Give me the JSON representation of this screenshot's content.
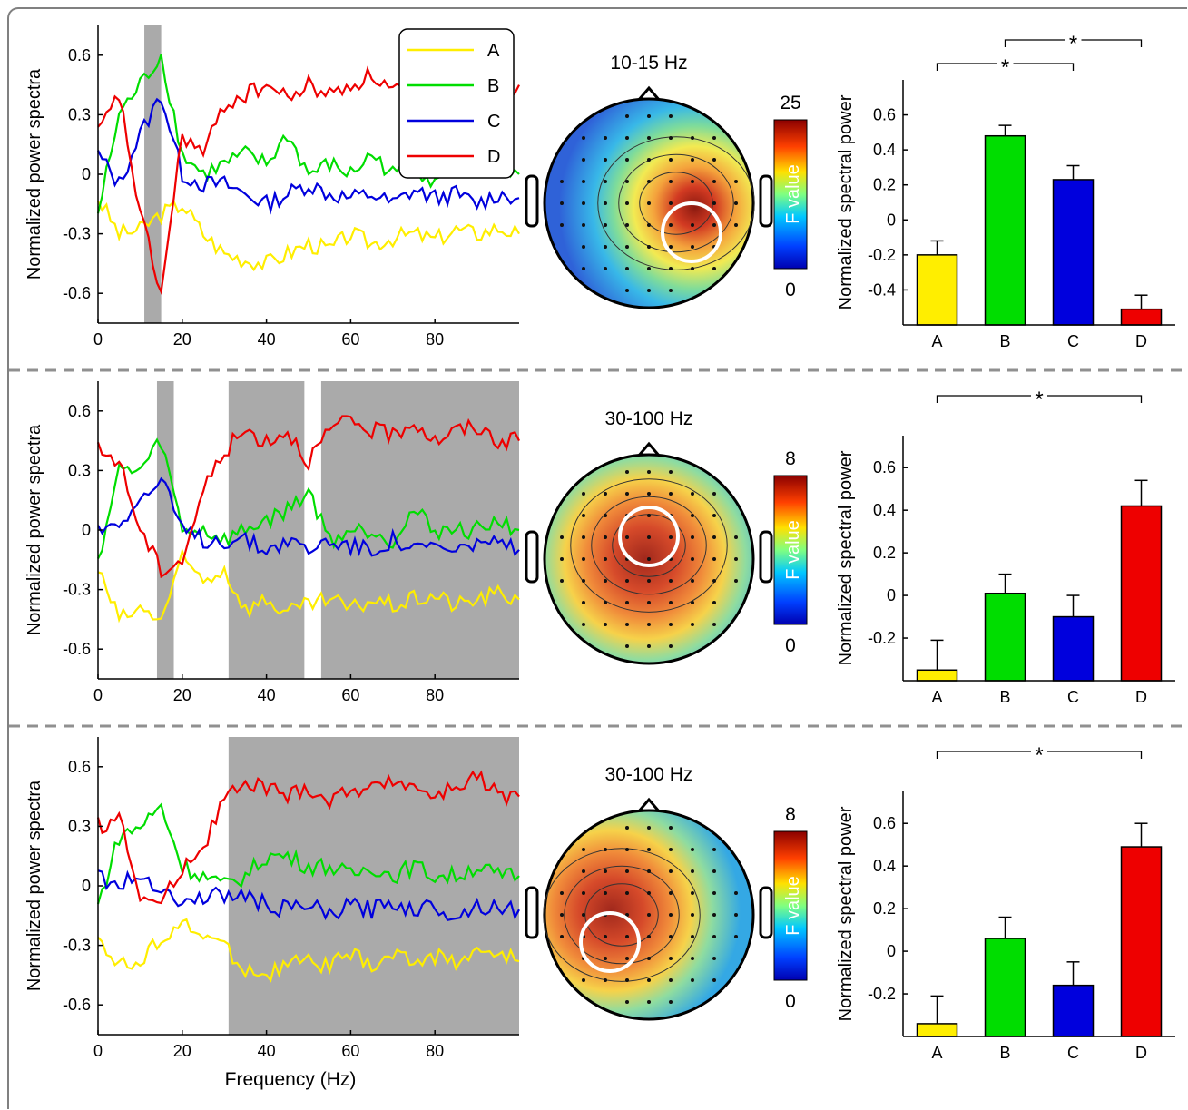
{
  "chart_data": [
    {
      "type": "line",
      "ylabel": "Normalized power spectra",
      "xlabel": "",
      "xlim": [
        0,
        100
      ],
      "ylim": [
        -0.75,
        0.75
      ],
      "xticks": [
        0,
        20,
        40,
        60,
        80
      ],
      "yticks": [
        0.6,
        0.3,
        0,
        -0.3,
        -0.6
      ],
      "legend": {
        "placement": "top-right",
        "entries": [
          "A",
          "B",
          "C",
          "D"
        ]
      },
      "highlight_ranges": [
        [
          11,
          15
        ]
      ],
      "series": [
        {
          "name": "A",
          "color": "#ffee00",
          "x": [
            0,
            5,
            10,
            15,
            20,
            25,
            30,
            35,
            40,
            45,
            50,
            55,
            60,
            65,
            70,
            75,
            80,
            85,
            90,
            95,
            100
          ],
          "y": [
            -0.12,
            -0.3,
            -0.28,
            -0.2,
            -0.15,
            -0.3,
            -0.4,
            -0.43,
            -0.45,
            -0.4,
            -0.35,
            -0.38,
            -0.3,
            -0.35,
            -0.32,
            -0.3,
            -0.33,
            -0.28,
            -0.3,
            -0.27,
            -0.3
          ]
        },
        {
          "name": "B",
          "color": "#00dd00",
          "x": [
            0,
            5,
            10,
            15,
            20,
            25,
            30,
            35,
            40,
            45,
            50,
            55,
            60,
            65,
            70,
            75,
            80,
            85,
            90,
            95,
            100
          ],
          "y": [
            -0.2,
            0.3,
            0.45,
            0.6,
            0.1,
            0.0,
            0.05,
            0.1,
            0.05,
            0.2,
            0.0,
            0.05,
            0.0,
            0.1,
            0.0,
            0.05,
            -0.05,
            0.1,
            0.0,
            0.05,
            0.0
          ]
        },
        {
          "name": "C",
          "color": "#0000dd",
          "x": [
            0,
            5,
            10,
            15,
            20,
            25,
            30,
            35,
            40,
            45,
            50,
            55,
            60,
            65,
            70,
            75,
            80,
            85,
            90,
            95,
            100
          ],
          "y": [
            0.1,
            -0.05,
            0.2,
            0.4,
            0.0,
            -0.05,
            -0.05,
            -0.1,
            -0.15,
            -0.1,
            -0.05,
            -0.1,
            -0.12,
            -0.1,
            -0.15,
            -0.08,
            -0.12,
            -0.1,
            -0.15,
            -0.1,
            -0.12
          ]
        },
        {
          "name": "D",
          "color": "#ee0000",
          "x": [
            0,
            5,
            10,
            15,
            20,
            25,
            30,
            35,
            40,
            45,
            50,
            55,
            60,
            65,
            70,
            75,
            80,
            85,
            90,
            95,
            100
          ],
          "y": [
            0.2,
            0.4,
            -0.2,
            -0.6,
            0.2,
            0.1,
            0.35,
            0.4,
            0.45,
            0.38,
            0.45,
            0.4,
            0.45,
            0.5,
            0.42,
            0.45,
            0.48,
            0.42,
            0.45,
            0.4,
            0.45
          ]
        }
      ]
    },
    {
      "type": "heatmap",
      "title": "10-15 Hz",
      "colorbar": {
        "label": "F value",
        "max": "25",
        "min": "0"
      },
      "hotspot": "right-center"
    },
    {
      "type": "bar",
      "ylabel": "Normalized spectral power",
      "categories": [
        "A",
        "B",
        "C",
        "D"
      ],
      "values": [
        -0.2,
        0.48,
        0.23,
        -0.51
      ],
      "errors": [
        0.08,
        0.06,
        0.08,
        0.08
      ],
      "colors": [
        "#ffee00",
        "#00dd00",
        "#0000dd",
        "#ee0000"
      ],
      "ylim": [
        -0.6,
        0.8
      ],
      "yticks": [
        0.6,
        0.4,
        0.2,
        0,
        -0.2,
        -0.4
      ],
      "significance": [
        {
          "from": "A",
          "to": "C",
          "label": "*"
        },
        {
          "from": "B",
          "to": "D",
          "label": "*"
        }
      ]
    },
    {
      "type": "line",
      "ylabel": "Normalized power spectra",
      "xlabel": "",
      "xlim": [
        0,
        100
      ],
      "ylim": [
        -0.75,
        0.75
      ],
      "xticks": [
        0,
        20,
        40,
        60,
        80
      ],
      "yticks": [
        0.6,
        0.3,
        0,
        -0.3,
        -0.6
      ],
      "highlight_ranges": [
        [
          14,
          18
        ],
        [
          31,
          49
        ],
        [
          53,
          100
        ]
      ],
      "series": [
        {
          "name": "A",
          "color": "#ffee00",
          "x": [
            0,
            5,
            10,
            15,
            20,
            25,
            30,
            35,
            40,
            45,
            50,
            55,
            60,
            65,
            70,
            75,
            80,
            85,
            90,
            95,
            100
          ],
          "y": [
            -0.2,
            -0.45,
            -0.4,
            -0.45,
            -0.15,
            -0.25,
            -0.2,
            -0.4,
            -0.35,
            -0.42,
            -0.38,
            -0.35,
            -0.4,
            -0.35,
            -0.38,
            -0.35,
            -0.33,
            -0.38,
            -0.35,
            -0.32,
            -0.35
          ]
        },
        {
          "name": "B",
          "color": "#00dd00",
          "x": [
            0,
            5,
            10,
            15,
            20,
            25,
            30,
            35,
            40,
            45,
            50,
            55,
            60,
            65,
            70,
            75,
            80,
            85,
            90,
            95,
            100
          ],
          "y": [
            -0.15,
            0.3,
            0.3,
            0.45,
            0.0,
            0.0,
            -0.05,
            0.0,
            0.05,
            0.1,
            0.2,
            -0.05,
            0.0,
            0.0,
            -0.05,
            0.1,
            0.0,
            0.0,
            0.0,
            0.05,
            0.0
          ]
        },
        {
          "name": "C",
          "color": "#0000dd",
          "x": [
            0,
            5,
            10,
            15,
            20,
            25,
            30,
            35,
            40,
            45,
            50,
            55,
            60,
            65,
            70,
            75,
            80,
            85,
            90,
            95,
            100
          ],
          "y": [
            0.0,
            0.05,
            0.15,
            0.25,
            0.0,
            -0.05,
            -0.05,
            -0.05,
            -0.1,
            -0.05,
            -0.1,
            -0.05,
            -0.08,
            -0.1,
            -0.05,
            -0.1,
            -0.08,
            -0.12,
            -0.05,
            -0.08,
            -0.1
          ]
        },
        {
          "name": "D",
          "color": "#ee0000",
          "x": [
            0,
            5,
            10,
            15,
            20,
            25,
            30,
            35,
            40,
            45,
            50,
            55,
            60,
            65,
            70,
            75,
            80,
            85,
            90,
            95,
            100
          ],
          "y": [
            0.4,
            0.35,
            0.0,
            -0.2,
            -0.15,
            0.2,
            0.4,
            0.5,
            0.45,
            0.5,
            0.35,
            0.5,
            0.55,
            0.5,
            0.48,
            0.55,
            0.45,
            0.5,
            0.52,
            0.45,
            0.45
          ]
        }
      ]
    },
    {
      "type": "heatmap",
      "title": "30-100 Hz",
      "colorbar": {
        "label": "F value",
        "max": "8",
        "min": "0"
      },
      "hotspot": "top-center"
    },
    {
      "type": "bar",
      "ylabel": "Normalized spectral power",
      "categories": [
        "A",
        "B",
        "C",
        "D"
      ],
      "values": [
        -0.35,
        0.01,
        -0.1,
        0.42
      ],
      "errors": [
        0.14,
        0.09,
        0.1,
        0.12
      ],
      "colors": [
        "#ffee00",
        "#00dd00",
        "#0000dd",
        "#ee0000"
      ],
      "ylim": [
        -0.4,
        0.75
      ],
      "yticks": [
        0.6,
        0.4,
        0.2,
        0,
        -0.2
      ],
      "significance": [
        {
          "from": "A",
          "to": "D",
          "label": "*"
        }
      ]
    },
    {
      "type": "line",
      "ylabel": "Normalized power spectra",
      "xlabel": "Frequency (Hz)",
      "xlim": [
        0,
        100
      ],
      "ylim": [
        -0.75,
        0.75
      ],
      "xticks": [
        0,
        20,
        40,
        60,
        80
      ],
      "yticks": [
        0.6,
        0.3,
        0,
        -0.3,
        -0.6
      ],
      "highlight_ranges": [
        [
          31,
          100
        ]
      ],
      "series": [
        {
          "name": "A",
          "color": "#ffee00",
          "x": [
            0,
            5,
            10,
            15,
            20,
            25,
            30,
            35,
            40,
            45,
            50,
            55,
            60,
            65,
            70,
            75,
            80,
            85,
            90,
            95,
            100
          ],
          "y": [
            -0.25,
            -0.4,
            -0.4,
            -0.25,
            -0.2,
            -0.25,
            -0.3,
            -0.42,
            -0.45,
            -0.4,
            -0.38,
            -0.4,
            -0.35,
            -0.4,
            -0.35,
            -0.38,
            -0.35,
            -0.38,
            -0.33,
            -0.35,
            -0.38
          ]
        },
        {
          "name": "B",
          "color": "#00dd00",
          "x": [
            0,
            5,
            10,
            15,
            20,
            25,
            30,
            35,
            40,
            45,
            50,
            55,
            60,
            65,
            70,
            75,
            80,
            85,
            90,
            95,
            100
          ],
          "y": [
            -0.1,
            0.25,
            0.3,
            0.4,
            0.1,
            0.05,
            0.0,
            0.05,
            0.15,
            0.15,
            0.1,
            0.1,
            0.05,
            0.1,
            0.05,
            0.1,
            0.05,
            0.05,
            0.1,
            0.05,
            0.05
          ]
        },
        {
          "name": "C",
          "color": "#0000dd",
          "x": [
            0,
            5,
            10,
            15,
            20,
            25,
            30,
            35,
            40,
            45,
            50,
            55,
            60,
            65,
            70,
            75,
            80,
            85,
            90,
            95,
            100
          ],
          "y": [
            0.05,
            0.0,
            0.05,
            0.0,
            -0.1,
            -0.05,
            -0.05,
            -0.05,
            -0.1,
            -0.12,
            -0.1,
            -0.15,
            -0.1,
            -0.12,
            -0.08,
            -0.12,
            -0.1,
            -0.15,
            -0.1,
            -0.1,
            -0.12
          ]
        },
        {
          "name": "D",
          "color": "#ee0000",
          "x": [
            0,
            5,
            10,
            15,
            20,
            25,
            30,
            35,
            40,
            45,
            50,
            55,
            60,
            65,
            70,
            75,
            80,
            85,
            90,
            95,
            100
          ],
          "y": [
            0.3,
            0.35,
            -0.05,
            -0.1,
            0.1,
            0.2,
            0.45,
            0.5,
            0.5,
            0.45,
            0.5,
            0.42,
            0.5,
            0.48,
            0.55,
            0.5,
            0.45,
            0.5,
            0.55,
            0.45,
            0.45
          ]
        }
      ]
    },
    {
      "type": "heatmap",
      "title": "30-100 Hz",
      "colorbar": {
        "label": "F value",
        "max": "8",
        "min": "0"
      },
      "hotspot": "left-center"
    },
    {
      "type": "bar",
      "ylabel": "Normalized spectral power",
      "categories": [
        "A",
        "B",
        "C",
        "D"
      ],
      "values": [
        -0.34,
        0.06,
        -0.16,
        0.49
      ],
      "errors": [
        0.13,
        0.1,
        0.11,
        0.11
      ],
      "colors": [
        "#ffee00",
        "#00dd00",
        "#0000dd",
        "#ee0000"
      ],
      "ylim": [
        -0.4,
        0.75
      ],
      "yticks": [
        0.6,
        0.4,
        0.2,
        0,
        -0.2
      ],
      "significance": [
        {
          "from": "A",
          "to": "D",
          "label": "*"
        }
      ]
    }
  ]
}
